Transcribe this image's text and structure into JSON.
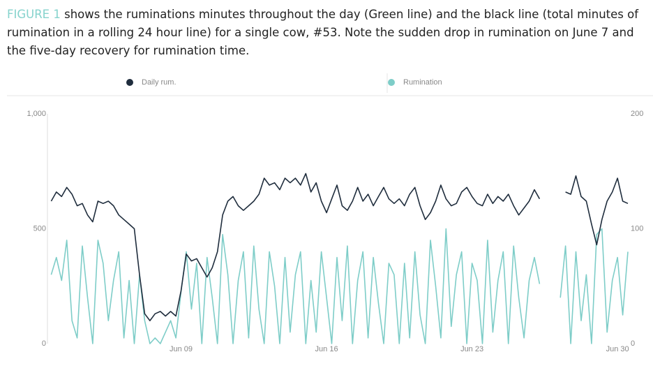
{
  "caption": {
    "label": "FIGURE 1",
    "text": "shows the ruminations minutes throughout the day (Green line) and the black line (total minutes of rumination in a rolling 24 hour line) for a single cow, #53. Note the sudden drop in rumination on June 7 and the five-day recovery for rumination time."
  },
  "chart_data": {
    "type": "line",
    "x": [
      2.75,
      3,
      3.25,
      3.5,
      3.75,
      4,
      4.25,
      4.5,
      4.75,
      5,
      5.25,
      5.5,
      5.75,
      6,
      6.25,
      6.5,
      6.75,
      7,
      7.25,
      7.5,
      7.75,
      8,
      8.25,
      8.5,
      8.75,
      9,
      9.25,
      9.5,
      9.75,
      10,
      10.25,
      10.5,
      10.75,
      11,
      11.25,
      11.5,
      11.75,
      12,
      12.25,
      12.5,
      12.75,
      13,
      13.25,
      13.5,
      13.75,
      14,
      14.25,
      14.5,
      14.75,
      15,
      15.25,
      15.5,
      15.75,
      16,
      16.25,
      16.5,
      16.75,
      17,
      17.25,
      17.5,
      17.75,
      18,
      18.25,
      18.5,
      18.75,
      19,
      19.25,
      19.5,
      19.75,
      20,
      20.25,
      20.5,
      20.75,
      21,
      21.25,
      21.5,
      21.75,
      22,
      22.25,
      22.5,
      22.75,
      23,
      23.25,
      23.5,
      23.75,
      24,
      24.25,
      24.5,
      24.75,
      25,
      25.25,
      25.5,
      25.75,
      26,
      26.25,
      26.5,
      26.75,
      27,
      27.25,
      27.5,
      27.75,
      28,
      28.25,
      28.5,
      28.75,
      29,
      29.25,
      29.5,
      29.75,
      30,
      30.25,
      30.5
    ],
    "series": [
      {
        "name": "Daily rum.",
        "color": "#1f2d3d",
        "axis": "y",
        "values": [
          620,
          660,
          640,
          680,
          650,
          600,
          610,
          560,
          530,
          620,
          610,
          620,
          600,
          560,
          540,
          520,
          500,
          300,
          130,
          100,
          130,
          140,
          120,
          140,
          120,
          230,
          390,
          360,
          370,
          330,
          290,
          330,
          400,
          560,
          620,
          640,
          600,
          580,
          600,
          620,
          650,
          720,
          690,
          700,
          670,
          720,
          700,
          720,
          690,
          740,
          660,
          700,
          620,
          570,
          630,
          690,
          600,
          580,
          620,
          680,
          620,
          650,
          600,
          640,
          680,
          630,
          610,
          630,
          600,
          650,
          680,
          600,
          540,
          570,
          620,
          690,
          630,
          600,
          610,
          660,
          680,
          640,
          610,
          600,
          650,
          610,
          640,
          620,
          650,
          600,
          560,
          590,
          620,
          670,
          630,
          null,
          null,
          null,
          null,
          660,
          650,
          730,
          640,
          620,
          520,
          430,
          540,
          620,
          660,
          720,
          620,
          610
        ]
      },
      {
        "name": "Rumination",
        "color": "#7ecdc8",
        "axis": "y2",
        "values": [
          60,
          75,
          55,
          90,
          20,
          5,
          85,
          40,
          0,
          90,
          70,
          20,
          55,
          80,
          5,
          55,
          0,
          60,
          20,
          0,
          5,
          0,
          10,
          20,
          5,
          45,
          80,
          30,
          70,
          0,
          75,
          40,
          0,
          95,
          60,
          0,
          55,
          80,
          5,
          85,
          30,
          0,
          80,
          50,
          0,
          75,
          10,
          60,
          80,
          0,
          55,
          10,
          80,
          40,
          0,
          75,
          20,
          85,
          0,
          55,
          80,
          5,
          75,
          35,
          0,
          70,
          60,
          0,
          70,
          5,
          80,
          25,
          0,
          90,
          50,
          5,
          100,
          15,
          60,
          80,
          0,
          70,
          55,
          0,
          90,
          10,
          55,
          80,
          0,
          85,
          40,
          5,
          55,
          75,
          52,
          null,
          null,
          null,
          40,
          85,
          0,
          80,
          20,
          60,
          0,
          95,
          100,
          10,
          55,
          75,
          25,
          80
        ]
      }
    ],
    "xlim": [
      2.57,
      30.5
    ],
    "xticks": [
      {
        "value": 9,
        "label": "Jun 09"
      },
      {
        "value": 16,
        "label": "Jun 16"
      },
      {
        "value": 23,
        "label": "Jun 23"
      },
      {
        "value": 30,
        "label": "Jun 30"
      }
    ],
    "ylim": [
      0,
      1000
    ],
    "yticks": [
      0,
      500,
      {
        "value": 1000,
        "label": "1,000"
      }
    ],
    "y2lim": [
      0,
      200
    ],
    "y2ticks": [
      0,
      100,
      200
    ]
  }
}
